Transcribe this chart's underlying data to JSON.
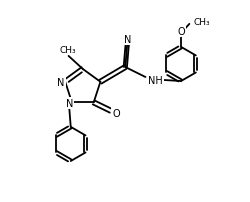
{
  "bg_color": "#ffffff",
  "line_color": "#000000",
  "line_width": 1.3,
  "font_size": 7.0,
  "xlim": [
    0,
    10
  ],
  "ylim": [
    0,
    8.5
  ]
}
